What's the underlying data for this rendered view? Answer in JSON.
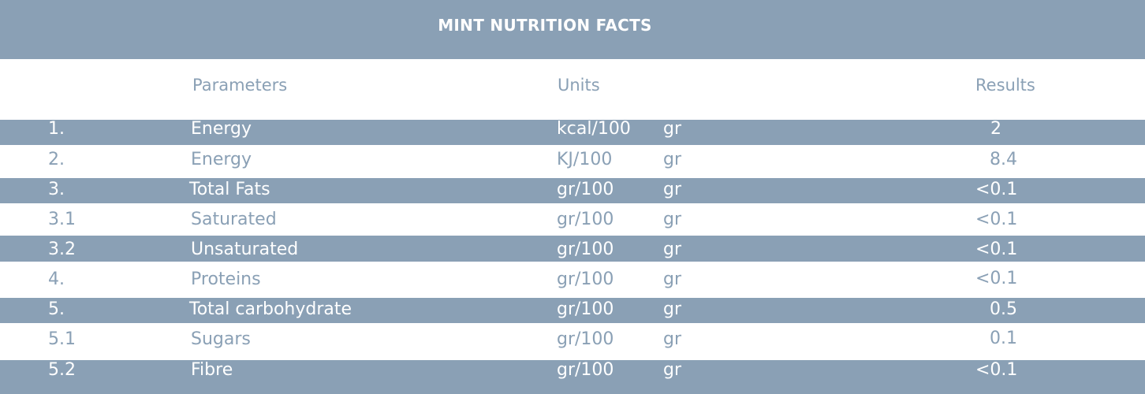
{
  "title": "MINT NUTRITION FACTS",
  "headers": {
    "parameters": "Parameters",
    "units": "Units",
    "results": "Results"
  },
  "colors": {
    "accent": "#8aa0b5",
    "background": "#ffffff",
    "text_on_accent": "#ffffff"
  },
  "rows": [
    {
      "num": "1.",
      "param": "Energy",
      "unit": "kcal/100",
      "unit2": "gr",
      "result": "2"
    },
    {
      "num": "2.",
      "param": "Energy",
      "unit": "KJ/100",
      "unit2": "gr",
      "result": "8.4"
    },
    {
      "num": "3.",
      "param": "Total Fats",
      "unit": "gr/100",
      "unit2": "gr",
      "result": "<0.1"
    },
    {
      "num": "3.1",
      "param": "Saturated",
      "unit": "gr/100",
      "unit2": "gr",
      "result": "<0.1"
    },
    {
      "num": "3.2",
      "param": "Unsaturated",
      "unit": "gr/100",
      "unit2": "gr",
      "result": "<0.1"
    },
    {
      "num": "4.",
      "param": "Proteins",
      "unit": "gr/100",
      "unit2": "gr",
      "result": "<0.1"
    },
    {
      "num": "5.",
      "param": "Total carbohydrate",
      "unit": "gr/100",
      "unit2": "gr",
      "result": "0.5"
    },
    {
      "num": "5.1",
      "param": "Sugars",
      "unit": "gr/100",
      "unit2": "gr",
      "result": "0.1"
    },
    {
      "num": "5.2",
      "param": "Fibre",
      "unit": "gr/100",
      "unit2": "gr",
      "result": "<0.1"
    }
  ]
}
